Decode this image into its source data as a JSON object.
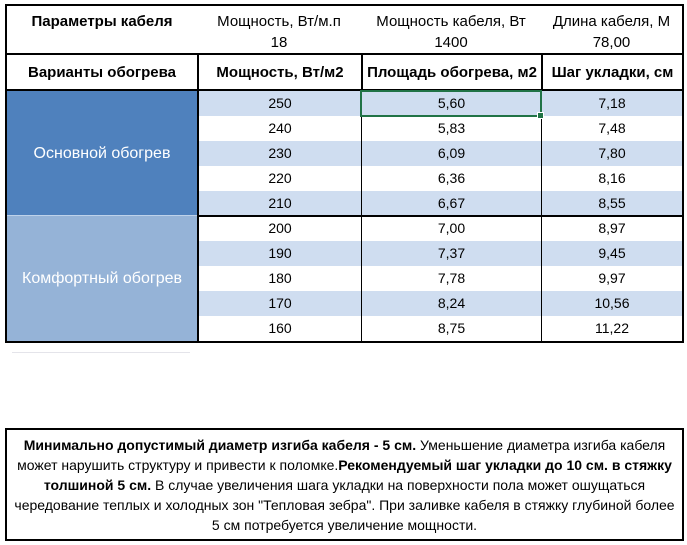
{
  "params": {
    "title": "Параметры кабеля",
    "items": [
      {
        "label": "Мощность, Вт/м.п",
        "value": "18"
      },
      {
        "label": "Мощность кабеля, Вт",
        "value": "1400"
      },
      {
        "label": "Длина кабеля, М",
        "value": "78,00"
      }
    ]
  },
  "table": {
    "headers": [
      "Варианты обогрева",
      "Мощность, Вт/м2",
      "Площадь обогрева, м2",
      "Шаг укладки, см"
    ],
    "sections": [
      {
        "label": "Основной обогрев",
        "color": "#4F81BD",
        "rows": [
          [
            "250",
            "5,60",
            "7,18"
          ],
          [
            "240",
            "5,83",
            "7,48"
          ],
          [
            "230",
            "6,09",
            "7,80"
          ],
          [
            "220",
            "6,36",
            "8,16"
          ],
          [
            "210",
            "6,67",
            "8,55"
          ]
        ]
      },
      {
        "label": "Комфортный обогрев",
        "color": "#95B3D7",
        "rows": [
          [
            "200",
            "7,00",
            "8,97"
          ],
          [
            "190",
            "7,37",
            "9,45"
          ],
          [
            "180",
            "7,78",
            "9,97"
          ],
          [
            "170",
            "8,24",
            "10,56"
          ],
          [
            "160",
            "8,75",
            "11,22"
          ]
        ]
      }
    ],
    "selected_cell": {
      "section": 0,
      "row": 0,
      "col": 1,
      "value": "5,60"
    },
    "colors": {
      "stripe": "#CFDDF0",
      "selection": "#217346",
      "section_main": "#4F81BD",
      "section_comfort": "#95B3D7"
    }
  },
  "note": {
    "segments": [
      {
        "text": "Минимально допустимый диаметр изгиба кабеля - 5 см.",
        "bold": true
      },
      {
        "text": "  Уменьшение диаметра изгиба кабеля может нарушить структуру и привести к поломке.",
        "bold": false
      },
      {
        "text": "Рекомендуемый шаг укладки до 10 см. в стяжку толшиной 5 см.",
        "bold": true
      },
      {
        "text": " В  случае увеличения шага укладки на поверхности пола может ошущаться чередование теплых и холодных зон \"Тепловая зебра\". При заливке кабеля в стяжку глубиной более 5 см потребуется увеличение мощности.",
        "bold": false
      }
    ]
  }
}
